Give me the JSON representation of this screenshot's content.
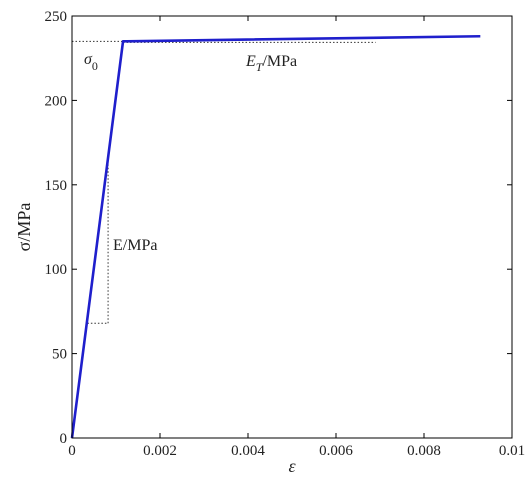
{
  "chart_data": {
    "type": "line",
    "xlabel": "ε",
    "ylabel": "σ/MPa",
    "xlim": [
      0,
      0.01
    ],
    "ylim": [
      0,
      250
    ],
    "xticks": [
      0,
      0.002,
      0.004,
      0.006,
      0.008,
      0.01
    ],
    "xtick_labels": [
      "0",
      "0.002",
      "0.004",
      "0.006",
      "0.008",
      "0.01"
    ],
    "yticks": [
      0,
      50,
      100,
      150,
      200,
      250
    ],
    "ytick_labels": [
      "0",
      "50",
      "100",
      "150",
      "200",
      "250"
    ],
    "grid": false,
    "series": [
      {
        "color": "#1f1fcc",
        "x": [
          0,
          0.00116,
          0.00928
        ],
        "y": [
          0,
          235,
          238
        ]
      }
    ],
    "annotations": {
      "sigma0": {
        "base": "σ",
        "sub": "0"
      },
      "e_modulus": {
        "label": "E/MPa"
      },
      "et_modulus": {
        "base": "E",
        "sub": "T",
        "suffix": "/MPa"
      }
    },
    "guides": {
      "sigma0_line": {
        "x": [
          0,
          0.00116
        ],
        "y": 235
      },
      "e_vertical": {
        "x": 0.00082,
        "y": [
          68,
          163
        ]
      },
      "e_horizontal": {
        "x": [
          0.00035,
          0.00082
        ],
        "y": 68
      },
      "et_line": {
        "x": [
          0.00116,
          0.0069
        ],
        "y": 235
      }
    }
  }
}
